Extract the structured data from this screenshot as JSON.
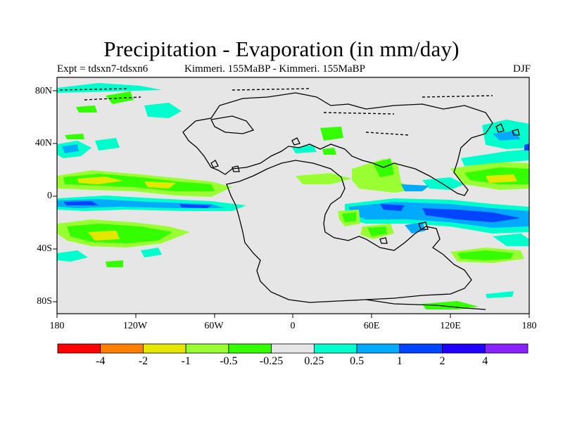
{
  "title": "Precipitation - Evaporation (in mm/day)",
  "left_subtitle": "Expt = tdsxn7-tdsxn6",
  "center_subtitle": "Kimmeri. 155MaBP - Kimmeri. 155MaBP",
  "season": "DJF",
  "lat_labels": [
    "80N",
    "40N",
    "0",
    "40S",
    "80S"
  ],
  "lon_labels": [
    "180",
    "120W",
    "60W",
    "0",
    "60E",
    "120E",
    "180"
  ],
  "colorbar": {
    "colors": [
      "#ff0000",
      "#ff8000",
      "#e6e600",
      "#99ff33",
      "#33ff00",
      "#e6e6e6",
      "#00ffcc",
      "#00aaff",
      "#0044ff",
      "#2200ff",
      "#8822ff"
    ],
    "labels": [
      "-4",
      "-2",
      "-1",
      "-0.5",
      "-0.25",
      "0.25",
      "0.5",
      "1",
      "2",
      "4"
    ]
  },
  "colors": {
    "background_field": "#e6e6e6",
    "coastline": "#000000"
  }
}
